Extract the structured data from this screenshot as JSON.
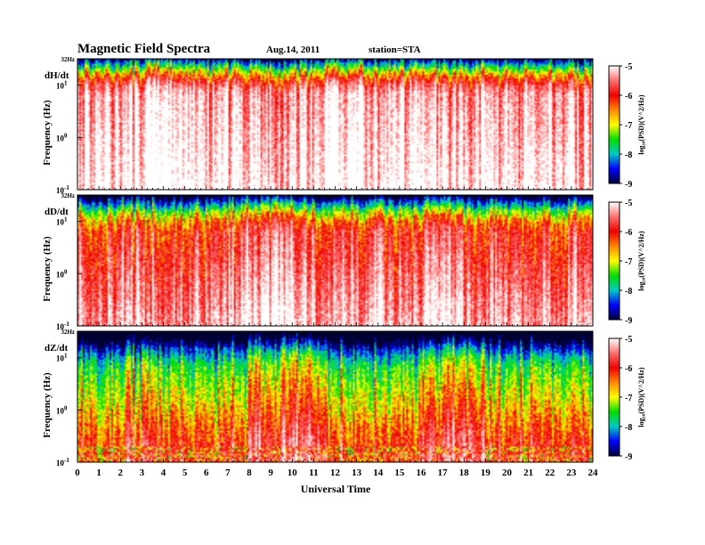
{
  "header": {
    "title": "Magnetic  Field  Spectra",
    "date": "Aug.14, 2011",
    "station": "station=STA"
  },
  "chart_data": {
    "type": "heatmap",
    "xlabel": "Universal Time",
    "x_ticks": [
      "0",
      "1",
      "2",
      "3",
      "4",
      "5",
      "6",
      "7",
      "8",
      "9",
      "10",
      "11",
      "12",
      "13",
      "14",
      "15",
      "16",
      "17",
      "18",
      "19",
      "20",
      "21",
      "22",
      "23",
      "24"
    ],
    "xlim": [
      0,
      24
    ],
    "ylabel": "Frequency  (Hz)",
    "y_scale": "log",
    "ylim": [
      0.1,
      32
    ],
    "y_top_label": "32Hz",
    "y_tick_labels": {
      "base": "10",
      "exponents": [
        "1",
        "0",
        "-1"
      ]
    },
    "colorbar": {
      "label": "log₁₀(PSD)(V^2/Hz)",
      "range": [
        -9,
        -5
      ],
      "ticks": [
        "-5",
        "-6",
        "-7",
        "-8",
        "-9"
      ],
      "colors": [
        "#ffffff",
        "#ff6f6f",
        "#ee0000",
        "#ff8800",
        "#ffff00",
        "#00dd00",
        "#00c8c8",
        "#0000ff",
        "#000033"
      ]
    },
    "panels": [
      {
        "label": "dH/dt",
        "background": "#ffffff",
        "base_level": -5.4,
        "freq_slope": 0.25,
        "top_damping": 1.6,
        "intense_hours": [
          [
            11.5,
            13.2
          ],
          [
            3.0,
            5.5
          ]
        ]
      },
      {
        "label": "dD/dt",
        "background": "#ffffff",
        "base_level": -5.9,
        "freq_slope": 0.45,
        "top_damping": 1.4,
        "intense_hours": [
          [
            7.5,
            11.0
          ],
          [
            16.0,
            18.0
          ]
        ]
      },
      {
        "label": "dZ/dt",
        "background": "#000022",
        "base_level": -6.9,
        "freq_slope": 0.9,
        "top_damping": 1.0,
        "intense_hours": [
          [
            8.0,
            11.0
          ],
          [
            16.2,
            19.0
          ]
        ]
      }
    ]
  }
}
